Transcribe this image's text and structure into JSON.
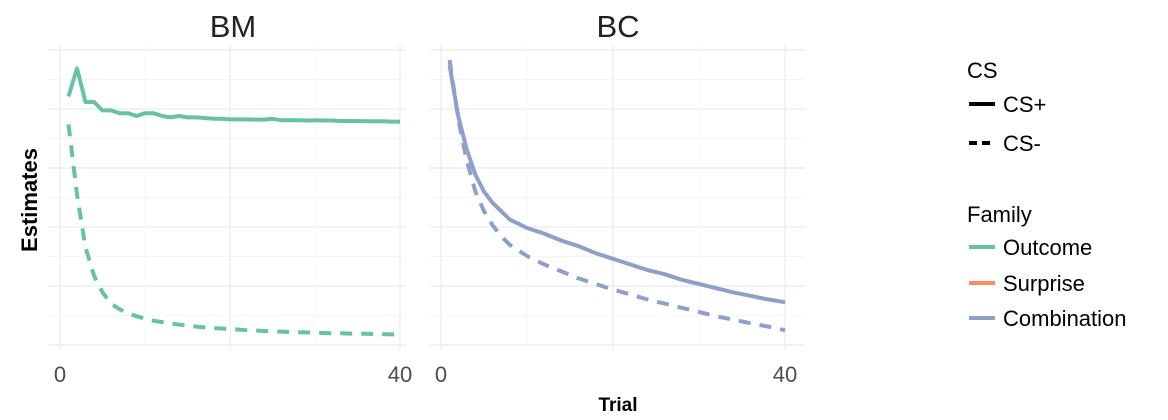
{
  "chart_data": {
    "type": "line",
    "xlabel": "Trial",
    "ylabel": "Estimates",
    "xlim": [
      0,
      40
    ],
    "xticks": [
      "0",
      "40"
    ],
    "grid": true,
    "legend_position": "right",
    "legends": [
      {
        "title": "CS",
        "items": [
          {
            "label": "CS+",
            "linetype": "solid"
          },
          {
            "label": "CS-",
            "linetype": "dashed"
          }
        ]
      },
      {
        "title": "Family",
        "items": [
          {
            "label": "Outcome",
            "color": "#66c2a5"
          },
          {
            "label": "Surprise",
            "color": "#fc8d62"
          },
          {
            "label": "Combination",
            "color": "#8da0cb"
          }
        ]
      }
    ],
    "panels": [
      {
        "title": "BM",
        "ylim": [
          0,
          1
        ],
        "series": [
          {
            "cs": "CS+",
            "family": "Outcome",
            "color": "#66c2a5",
            "dash": false,
            "x": [
              1,
              2,
              3,
              4,
              5,
              6,
              7,
              8,
              9,
              10,
              11,
              12,
              13,
              14,
              15,
              16,
              17,
              18,
              19,
              20,
              21,
              22,
              23,
              24,
              25,
              26,
              27,
              28,
              29,
              30,
              31,
              32,
              33,
              34,
              35,
              36,
              37,
              38,
              39,
              40
            ],
            "y": [
              0.87,
              0.97,
              0.85,
              0.85,
              0.82,
              0.82,
              0.81,
              0.81,
              0.8,
              0.81,
              0.81,
              0.8,
              0.795,
              0.8,
              0.795,
              0.795,
              0.793,
              0.79,
              0.79,
              0.788,
              0.788,
              0.788,
              0.787,
              0.787,
              0.79,
              0.785,
              0.785,
              0.785,
              0.784,
              0.785,
              0.784,
              0.784,
              0.782,
              0.782,
              0.782,
              0.781,
              0.781,
              0.781,
              0.78,
              0.78
            ]
          },
          {
            "cs": "CS-",
            "family": "Outcome",
            "color": "#66c2a5",
            "dash": true,
            "x": [
              1,
              2,
              3,
              4,
              5,
              6,
              7,
              8,
              9,
              10,
              11,
              12,
              13,
              14,
              15,
              16,
              17,
              18,
              19,
              20,
              21,
              22,
              23,
              24,
              25,
              26,
              27,
              28,
              29,
              30,
              31,
              32,
              33,
              34,
              35,
              36,
              37,
              38,
              39,
              40
            ],
            "y": [
              0.77,
              0.52,
              0.33,
              0.23,
              0.17,
              0.13,
              0.11,
              0.095,
              0.085,
              0.076,
              0.069,
              0.064,
              0.059,
              0.055,
              0.051,
              0.048,
              0.045,
              0.043,
              0.041,
              0.039,
              0.037,
              0.035,
              0.034,
              0.032,
              0.031,
              0.03,
              0.029,
              0.028,
              0.027,
              0.026,
              0.025,
              0.024,
              0.024,
              0.023,
              0.022,
              0.022,
              0.021,
              0.021,
              0.02,
              0.02
            ]
          }
        ]
      },
      {
        "title": "BC",
        "ylim": [
          0,
          1
        ],
        "series": [
          {
            "cs": "CS+",
            "family": "Combination",
            "color": "#8da0cb",
            "dash": false,
            "x": [
              1,
              2,
              3,
              4,
              5,
              6,
              7,
              8,
              10,
              12,
              14,
              16,
              18,
              20,
              22,
              24,
              26,
              28,
              30,
              32,
              34,
              36,
              38,
              40
            ],
            "y": [
              0.98,
              0.8,
              0.68,
              0.59,
              0.53,
              0.49,
              0.46,
              0.43,
              0.4,
              0.38,
              0.355,
              0.335,
              0.31,
              0.29,
              0.27,
              0.25,
              0.235,
              0.215,
              0.2,
              0.185,
              0.17,
              0.158,
              0.145,
              0.135
            ]
          },
          {
            "cs": "CS-",
            "family": "Combination",
            "color": "#8da0cb",
            "dash": true,
            "x": [
              1,
              2,
              3,
              4,
              5,
              6,
              7,
              8,
              10,
              12,
              14,
              16,
              18,
              20,
              22,
              24,
              26,
              28,
              30,
              32,
              34,
              36,
              38,
              40
            ],
            "y": [
              1.0,
              0.79,
              0.64,
              0.53,
              0.46,
              0.41,
              0.37,
              0.34,
              0.3,
              0.27,
              0.245,
              0.22,
              0.2,
              0.18,
              0.163,
              0.145,
              0.13,
              0.115,
              0.1,
              0.085,
              0.072,
              0.06,
              0.048,
              0.035
            ]
          }
        ]
      }
    ]
  }
}
